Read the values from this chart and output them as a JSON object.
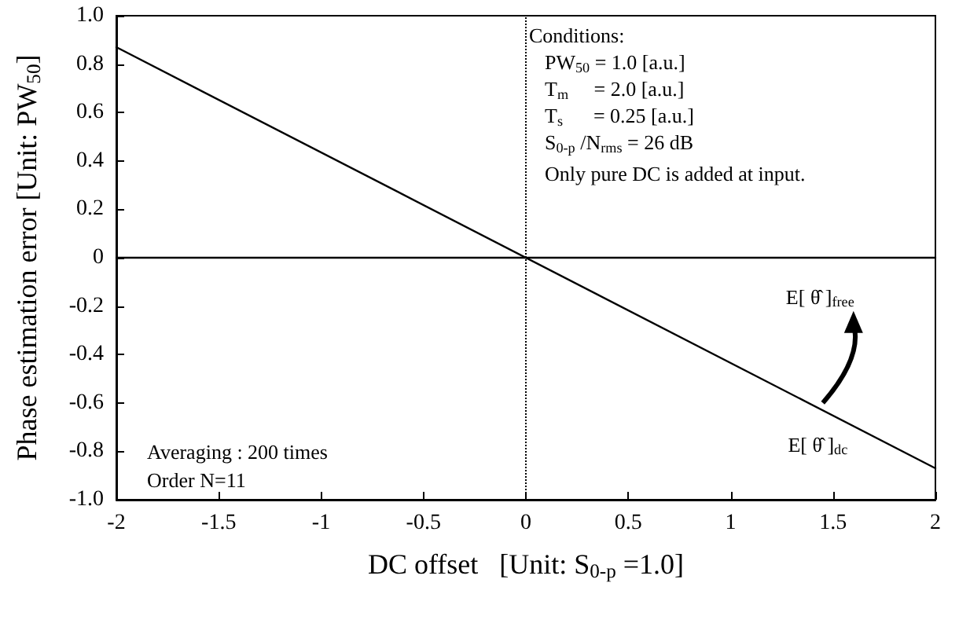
{
  "chart_data": {
    "type": "line",
    "xlabel": "DC offset   [Unit: S$_{0-p}$ =1.0]",
    "ylabel": "Phase estimation error [Unit: PW$_{50}$]",
    "x": [
      -2,
      2
    ],
    "series": [
      {
        "name": "E[ θ̂ ]$_{dc}$",
        "color": "#000000",
        "values": [
          0.87,
          -0.87
        ]
      },
      {
        "name": "E[ θ̂ ]$_{free}$",
        "color": "#000000",
        "values": [
          0,
          0
        ]
      }
    ],
    "xlim": [
      -2,
      2
    ],
    "xticks": [
      -2,
      -1.5,
      -1,
      -0.5,
      0,
      0.5,
      1,
      1.5,
      2
    ],
    "ylim": [
      -1,
      1
    ],
    "yticks": [
      {
        "value": -1,
        "label": "-1.0"
      },
      -0.8,
      -0.6,
      -0.4,
      -0.2,
      0,
      0.2,
      0.4,
      0.6,
      0.8,
      {
        "value": 1,
        "label": "1.0"
      }
    ],
    "ref_lines": [
      {
        "axis": "x",
        "value": 0,
        "line_style": "dotted"
      }
    ],
    "annotations": [
      "Conditions:",
      "PW$_{50}$ = 1.0 [a.u.]",
      "T$_{m}$     = 2.0 [a.u.]",
      "T$_{s}$      = 0.25 [a.u.]",
      "S$_{0-p}$ /N$_{rms}$ = 26 dB",
      "Only pure DC is added at input.",
      "Averaging : 200 times",
      "Order N=11"
    ],
    "grid": false,
    "legend": false,
    "marker": "none",
    "line_style": "solid"
  }
}
